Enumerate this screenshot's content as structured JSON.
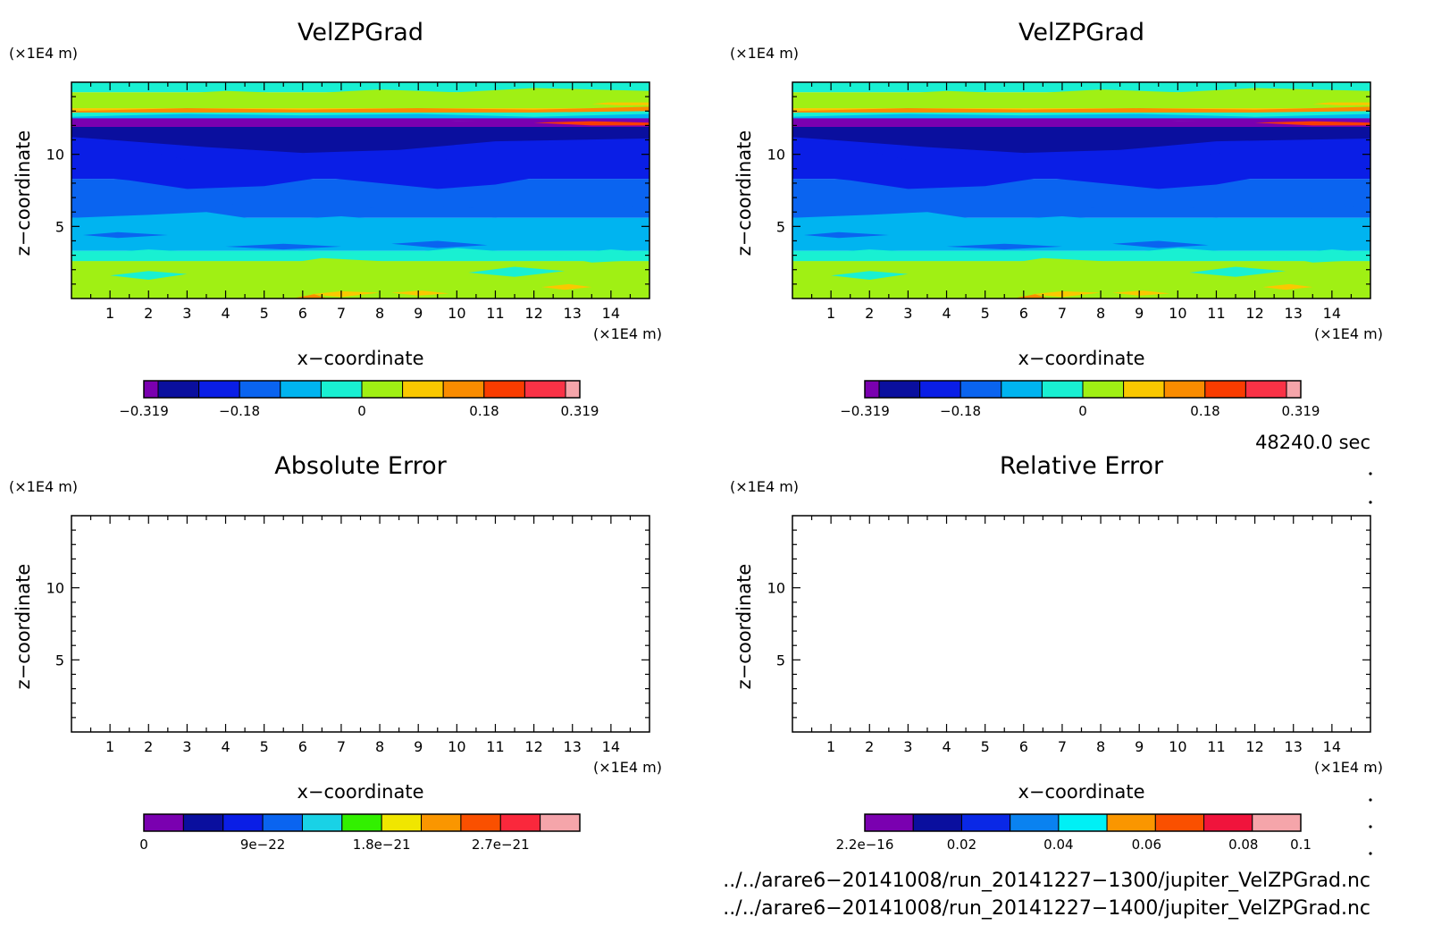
{
  "panels": [
    {
      "id": "top-left",
      "title": "VelZPGrad",
      "field": "velzpgrad",
      "xlabel": "x−coordinate",
      "ylabel": "z−coordinate",
      "xunit": "(×1E4 m)",
      "yunit": "(×1E4 m)",
      "xticks": [
        "1",
        "2",
        "3",
        "4",
        "5",
        "6",
        "7",
        "8",
        "9",
        "10",
        "11",
        "12",
        "13",
        "14"
      ],
      "yticks": [
        "5",
        "10"
      ],
      "colorbar": {
        "colors": [
          "#7a00b0",
          "#0a0f9e",
          "#0a1ee6",
          "#0a64f0",
          "#00b4f0",
          "#19f0d2",
          "#a0f014",
          "#fac800",
          "#fa8c00",
          "#fa3c00",
          "#fa3246",
          "#f5a5aa"
        ],
        "labels": [
          "−0.319",
          "−0.18",
          "0",
          "0.18",
          "0.319"
        ]
      }
    },
    {
      "id": "top-right",
      "title": "VelZPGrad",
      "field": "velzpgrad",
      "xlabel": "x−coordinate",
      "ylabel": "z−coordinate",
      "xunit": "(×1E4 m)",
      "yunit": "(×1E4 m)",
      "xticks": [
        "1",
        "2",
        "3",
        "4",
        "5",
        "6",
        "7",
        "8",
        "9",
        "10",
        "11",
        "12",
        "13",
        "14"
      ],
      "yticks": [
        "5",
        "10"
      ],
      "colorbar": {
        "colors": [
          "#7a00b0",
          "#0a0f9e",
          "#0a1ee6",
          "#0a64f0",
          "#00b4f0",
          "#19f0d2",
          "#a0f014",
          "#fac800",
          "#fa8c00",
          "#fa3c00",
          "#fa3246",
          "#f5a5aa"
        ],
        "labels": [
          "−0.319",
          "−0.18",
          "0",
          "0.18",
          "0.319"
        ]
      }
    },
    {
      "id": "bottom-left",
      "title": "Absolute Error",
      "field": "empty",
      "xlabel": "x−coordinate",
      "ylabel": "z−coordinate",
      "xunit": "(×1E4 m)",
      "yunit": "(×1E4 m)",
      "xticks": [
        "1",
        "2",
        "3",
        "4",
        "5",
        "6",
        "7",
        "8",
        "9",
        "10",
        "11",
        "12",
        "13",
        "14"
      ],
      "yticks": [
        "5",
        "10"
      ],
      "colorbar": {
        "colors": [
          "#7a00b0",
          "#0a0f9e",
          "#0a1ee6",
          "#0a64f0",
          "#19d2e6",
          "#32f000",
          "#f0e600",
          "#fa9600",
          "#fa5000",
          "#fa283c",
          "#f5a5aa"
        ],
        "labels": [
          "0",
          "9e−22",
          "1.8e−21",
          "2.7e−21"
        ]
      }
    },
    {
      "id": "bottom-right",
      "title": "Relative Error",
      "field": "empty",
      "xlabel": "x−coordinate",
      "ylabel": "z−coordinate",
      "xunit": "(×1E4 m)",
      "yunit": "(×1E4 m)",
      "xticks": [
        "1",
        "2",
        "3",
        "4",
        "5",
        "6",
        "7",
        "8",
        "9",
        "10",
        "11",
        "12",
        "13",
        "14"
      ],
      "yticks": [
        "5",
        "10"
      ],
      "colorbar": {
        "colors": [
          "#7a00b0",
          "#0a0f9e",
          "#0a28e6",
          "#0a82f0",
          "#00f0f5",
          "#fa9600",
          "#fa5000",
          "#f0143c",
          "#f5a5aa"
        ],
        "labels": [
          "2.2e−16",
          "0.02",
          "0.04",
          "0.06",
          "0.08",
          "0.1"
        ]
      }
    }
  ],
  "time_label": "48240.0 sec",
  "file_paths": [
    "../../arare6−20141008/run_20141227−1300/jupiter_VelZPGrad.nc",
    "../../arare6−20141008/run_20141227−1400/jupiter_VelZPGrad.nc"
  ],
  "chart_data": [
    {
      "type": "heatmap",
      "title": "VelZPGrad",
      "xlabel": "x−coordinate (×1E4 m)",
      "ylabel": "z−coordinate (×1E4 m)",
      "xlim": [
        0,
        15
      ],
      "ylim": [
        0,
        15
      ],
      "levels": [
        -0.319,
        -0.18,
        0,
        0.18,
        0.319
      ],
      "z_profile": [
        {
          "z_range": [
            0,
            2
          ],
          "value": 0.05,
          "note_color": "yellow-green"
        },
        {
          "z_range": [
            2,
            3.5
          ],
          "value": 0.02
        },
        {
          "z_range": [
            3.5,
            8
          ],
          "value": -0.05
        },
        {
          "z_range": [
            8,
            11
          ],
          "value": -0.12
        },
        {
          "z_range": [
            11,
            12
          ],
          "value": -0.2
        },
        {
          "z_range": [
            12,
            12.6
          ],
          "value": -0.3
        },
        {
          "z_range": [
            12.6,
            13.2
          ],
          "value": 0.02
        },
        {
          "z_range": [
            13.2,
            13.5
          ],
          "value": 0.12
        },
        {
          "z_range": [
            13.5,
            14.3
          ],
          "value": 0.05
        },
        {
          "z_range": [
            14.3,
            15
          ],
          "value": 0.01
        }
      ]
    },
    {
      "type": "heatmap",
      "title": "VelZPGrad",
      "xlabel": "x−coordinate (×1E4 m)",
      "ylabel": "z−coordinate (×1E4 m)",
      "xlim": [
        0,
        15
      ],
      "ylim": [
        0,
        15
      ],
      "levels": [
        -0.319,
        -0.18,
        0,
        0.18,
        0.319
      ]
    },
    {
      "type": "heatmap",
      "title": "Absolute Error",
      "xlabel": "x−coordinate (×1E4 m)",
      "ylabel": "z−coordinate (×1E4 m)",
      "xlim": [
        0,
        15
      ],
      "ylim": [
        0,
        15
      ],
      "levels": [
        0,
        9e-22,
        1.8e-21,
        2.7e-21
      ],
      "values": []
    },
    {
      "type": "heatmap",
      "title": "Relative Error",
      "xlabel": "x−coordinate (×1E4 m)",
      "ylabel": "z−coordinate (×1E4 m)",
      "xlim": [
        0,
        15
      ],
      "ylim": [
        0,
        15
      ],
      "levels": [
        2.2e-16,
        0.02,
        0.04,
        0.06,
        0.08,
        0.1
      ],
      "values": []
    }
  ]
}
